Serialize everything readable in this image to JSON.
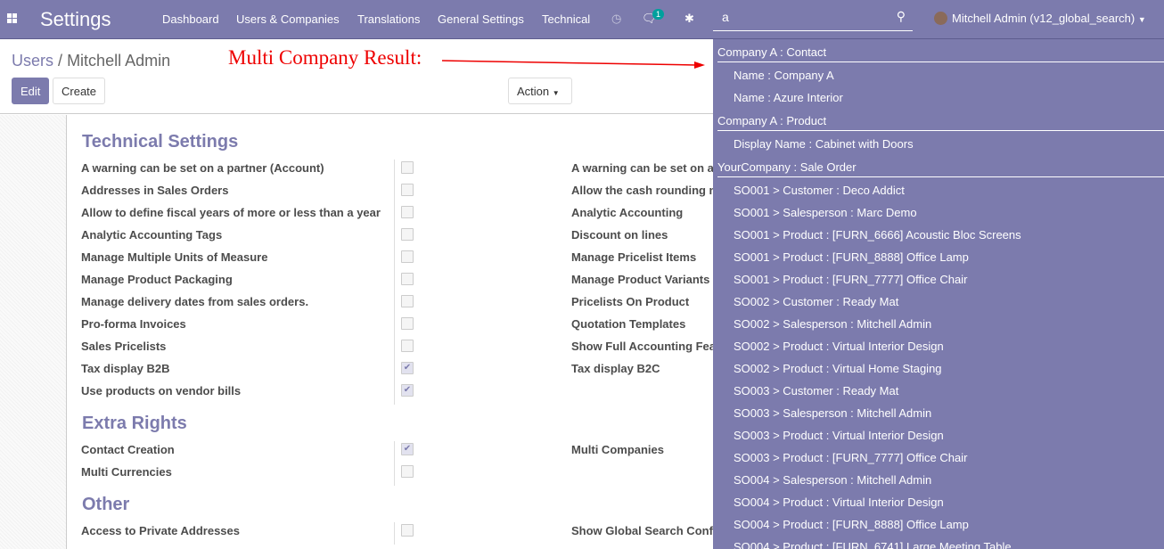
{
  "navbar": {
    "app_title": "Settings",
    "menus": [
      "Dashboard",
      "Users & Companies",
      "Translations",
      "General Settings",
      "Technical"
    ],
    "message_count": "1",
    "search_value": "a",
    "user": "Mitchell Admin (v12_global_search)",
    "color": "#7c7bad"
  },
  "breadcrumb": {
    "parent": "Users",
    "separator": "/",
    "current": "Mitchell Admin"
  },
  "annotation": "Multi Company Result:",
  "buttons": {
    "edit": "Edit",
    "create": "Create",
    "action": "Action"
  },
  "sections": [
    {
      "title": "Technical Settings",
      "left": [
        {
          "label": "A warning can be set on a partner (Account)",
          "checked": false
        },
        {
          "label": "Addresses in Sales Orders",
          "checked": false
        },
        {
          "label": "Allow to define fiscal years of more or less than a year",
          "checked": false
        },
        {
          "label": "Analytic Accounting Tags",
          "checked": false
        },
        {
          "label": "Manage Multiple Units of Measure",
          "checked": false
        },
        {
          "label": "Manage Product Packaging",
          "checked": false
        },
        {
          "label": "Manage delivery dates from sales orders.",
          "checked": false
        },
        {
          "label": "Pro-forma Invoices",
          "checked": false
        },
        {
          "label": "Sales Pricelists",
          "checked": false
        },
        {
          "label": "Tax display B2B",
          "checked": true
        },
        {
          "label": "Use products on vendor bills",
          "checked": true
        }
      ],
      "right": [
        "A warning can be set on a",
        "Allow the cash rounding m",
        "Analytic Accounting",
        "Discount on lines",
        "Manage Pricelist Items",
        "Manage Product Variants",
        "Pricelists On Product",
        "Quotation Templates",
        "Show Full Accounting Fea",
        "Tax display B2C"
      ]
    },
    {
      "title": "Extra Rights",
      "left": [
        {
          "label": "Contact Creation",
          "checked": true
        },
        {
          "label": "Multi Currencies",
          "checked": false
        }
      ],
      "right": [
        "Multi Companies"
      ]
    },
    {
      "title": "Other",
      "left": [
        {
          "label": "Access to Private Addresses",
          "checked": false
        }
      ],
      "right": [
        "Show Global Search Conf"
      ]
    }
  ],
  "results": [
    {
      "group": "Company A : Contact",
      "items": [
        "Name : Company A",
        "Name : Azure Interior"
      ]
    },
    {
      "group": "Company A : Product",
      "items": [
        "Display Name : Cabinet with Doors"
      ]
    },
    {
      "group": "YourCompany : Sale Order",
      "items": [
        "SO001 > Customer : Deco Addict",
        "SO001 > Salesperson : Marc Demo",
        "SO001 > Product : [FURN_6666] Acoustic Bloc Screens",
        "SO001 > Product : [FURN_8888] Office Lamp",
        "SO001 > Product : [FURN_7777] Office Chair",
        "SO002 > Customer : Ready Mat",
        "SO002 > Salesperson : Mitchell Admin",
        "SO002 > Product : Virtual Interior Design",
        "SO002 > Product : Virtual Home Staging",
        "SO003 > Customer : Ready Mat",
        "SO003 > Salesperson : Mitchell Admin",
        "SO003 > Product : Virtual Interior Design",
        "SO003 > Product : [FURN_7777] Office Chair",
        "SO004 > Salesperson : Mitchell Admin",
        "SO004 > Product : Virtual Interior Design",
        "SO004 > Product : [FURN_8888] Office Lamp",
        "SO004 > Product : [FURN_6741] Large Meeting Table"
      ]
    }
  ]
}
